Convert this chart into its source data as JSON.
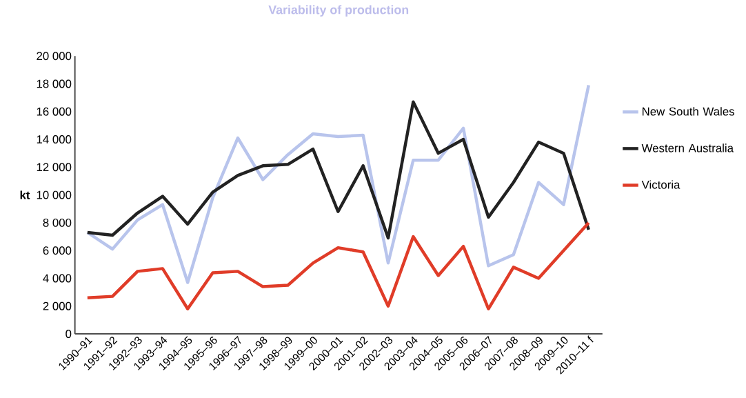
{
  "chart_data": {
    "type": "line",
    "title": "Variability of production",
    "ylabel": "kt",
    "categories": [
      "1990–91",
      "1991–92",
      "1992–93",
      "1993–94",
      "1994–95",
      "1995–96",
      "1996–97",
      "1997–98",
      "1998–99",
      "1999–00",
      "2000–01",
      "2001–02",
      "2002–03",
      "2003–04",
      "2004–05",
      "2005–06",
      "2006–07",
      "2007–08",
      "2008–09",
      "2009–10",
      "2010–11 f"
    ],
    "series": [
      {
        "name": "New South Wales",
        "color": "#b8c4ec",
        "values": [
          7300,
          6100,
          8200,
          9300,
          3700,
          9800,
          14100,
          11100,
          12900,
          14400,
          14200,
          14300,
          5100,
          12500,
          12500,
          14800,
          4900,
          5700,
          10900,
          9300,
          17900
        ]
      },
      {
        "name": "Western Australia",
        "color": "#222222",
        "values": [
          7300,
          7100,
          8700,
          9900,
          7900,
          10200,
          11400,
          12100,
          12200,
          13300,
          8800,
          12100,
          6900,
          16700,
          13000,
          14000,
          8400,
          10900,
          13800,
          13000,
          7500
        ]
      },
      {
        "name": "Victoria",
        "color": "#e03c28",
        "values": [
          2600,
          2700,
          4500,
          4700,
          1800,
          4400,
          4500,
          3400,
          3500,
          5100,
          6200,
          5900,
          2000,
          7000,
          4200,
          6300,
          1800,
          4800,
          4000,
          6000,
          8000
        ]
      }
    ],
    "ylim": [
      0,
      20000
    ],
    "yticks": [
      {
        "value": 0,
        "label": "0"
      },
      {
        "value": 2000,
        "label": "2 000"
      },
      {
        "value": 4000,
        "label": "4 000"
      },
      {
        "value": 6000,
        "label": "6 000"
      },
      {
        "value": 8000,
        "label": "8 000"
      },
      {
        "value": 10000,
        "label": "10 000"
      },
      {
        "value": 12000,
        "label": "12 000"
      },
      {
        "value": 14000,
        "label": "14 000"
      },
      {
        "value": 16000,
        "label": "16 000"
      },
      {
        "value": 18000,
        "label": "18 000"
      },
      {
        "value": 20000,
        "label": "20 000"
      }
    ],
    "legend": "right",
    "grid": false,
    "marker": "none",
    "line_style": "solid"
  }
}
